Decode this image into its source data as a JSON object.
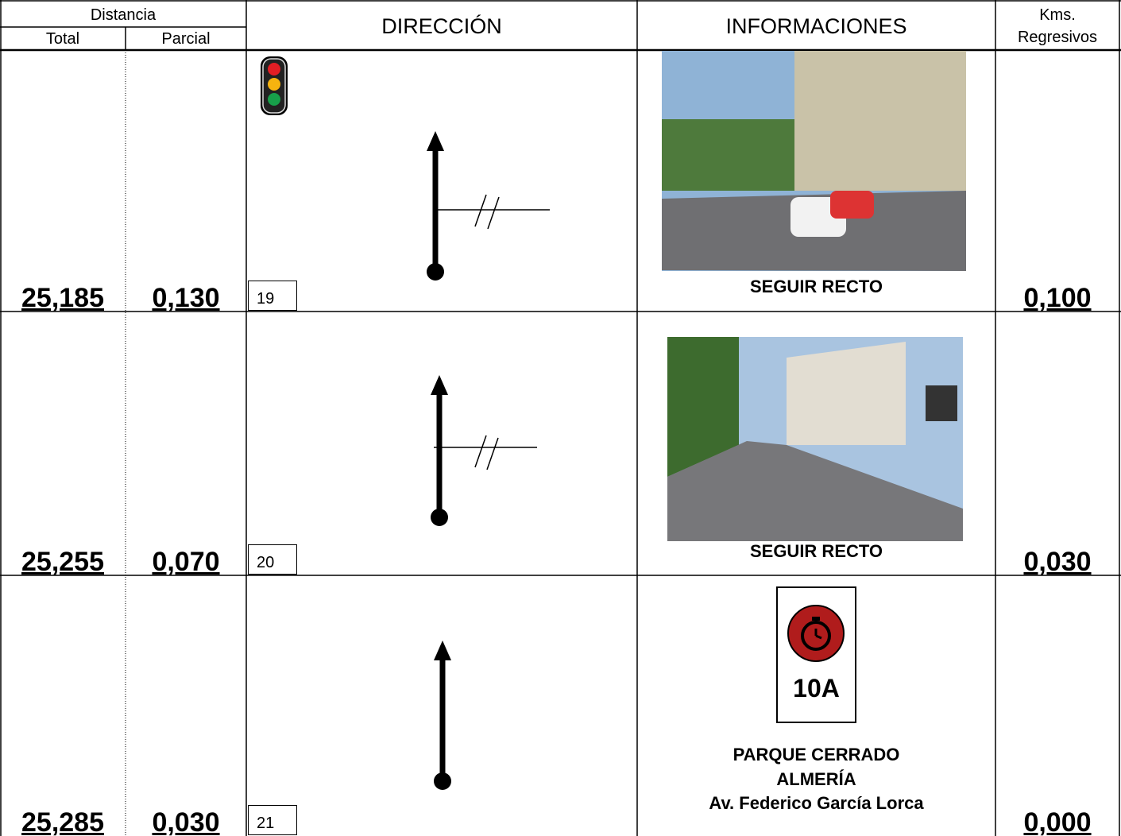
{
  "header": {
    "distancia": "Distancia",
    "total": "Total",
    "parcial": "Parcial",
    "direccion": "DIRECCIÓN",
    "informaciones": "INFORMACIONES",
    "kms": "Kms.",
    "regresivos": "Regresivos"
  },
  "rows": [
    {
      "total": "25,185",
      "parcial": "0,130",
      "number": "19",
      "info": [
        "SEGUIR RECTO"
      ],
      "kms": "0,100"
    },
    {
      "total": "25,255",
      "parcial": "0,070",
      "number": "20",
      "info": [
        "SEGUIR RECTO"
      ],
      "kms": "0,030"
    },
    {
      "total": "25,285",
      "parcial": "0,030",
      "number": "21",
      "stamp": "10A",
      "info": [
        "PARQUE CERRADO",
        "ALMERÍA",
        "Av. Federico García Lorca"
      ],
      "kms": "0,000"
    }
  ]
}
